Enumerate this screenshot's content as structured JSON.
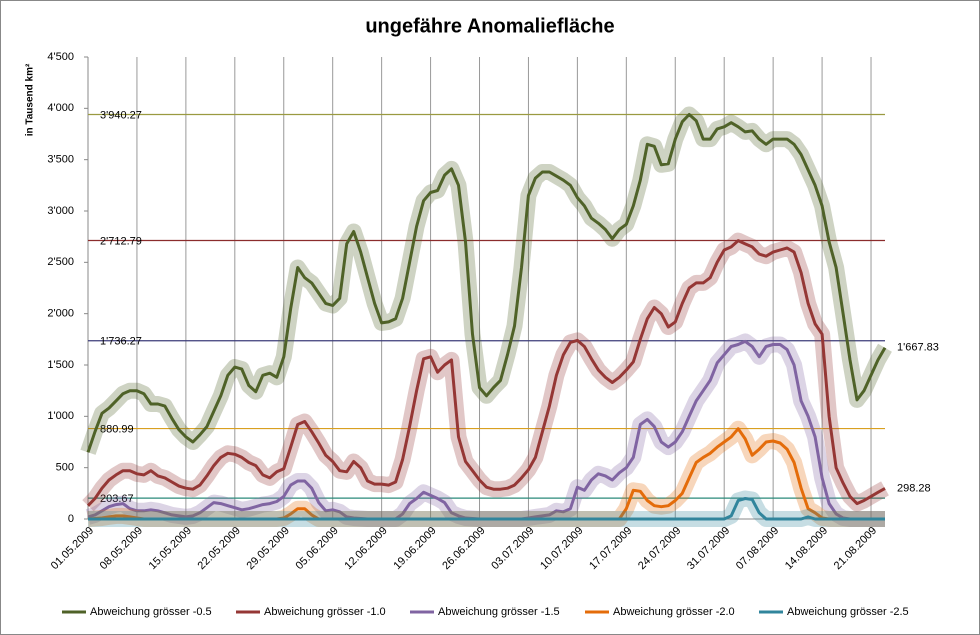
{
  "chart_data": {
    "type": "line",
    "title": "ungefähre Anomaliefläche",
    "y_label": "in Tausend  km²",
    "categories": [
      "01.05.2009",
      null,
      null,
      null,
      null,
      null,
      null,
      "08.05.2009",
      null,
      null,
      null,
      null,
      null,
      null,
      "15.05.2009",
      null,
      null,
      null,
      null,
      null,
      null,
      "22.05.2009",
      null,
      null,
      null,
      null,
      null,
      null,
      "29.05.2009",
      null,
      null,
      null,
      null,
      null,
      null,
      "05.06.2009",
      null,
      null,
      null,
      null,
      null,
      null,
      "12.06.2009",
      null,
      null,
      null,
      null,
      null,
      null,
      "19.06.2009",
      null,
      null,
      null,
      null,
      null,
      null,
      "26.06.2009",
      null,
      null,
      null,
      null,
      null,
      null,
      "03.07.2009",
      null,
      null,
      null,
      null,
      null,
      null,
      "10.07.2009",
      null,
      null,
      null,
      null,
      null,
      null,
      "17.07.2009",
      null,
      null,
      null,
      null,
      null,
      null,
      "24.07.2009",
      null,
      null,
      null,
      null,
      null,
      null,
      "31.07.2009",
      null,
      null,
      null,
      null,
      null,
      null,
      "07.08.2009",
      null,
      null,
      null,
      null,
      null,
      null,
      "14.08.2009",
      null,
      null,
      null,
      null,
      null,
      null,
      "21.08.2009",
      null,
      null
    ],
    "ylim": [
      0,
      4500
    ],
    "yticks": [
      0,
      500,
      {
        "value": 1000,
        "label": "1'000"
      },
      {
        "value": 1500,
        "label": "1'500"
      },
      {
        "value": 2000,
        "label": "2'000"
      },
      {
        "value": 2500,
        "label": "2'500"
      },
      {
        "value": 3000,
        "label": "3'000"
      },
      {
        "value": 3500,
        "label": "3'500"
      },
      {
        "value": 4000,
        "label": "4'000"
      },
      {
        "value": 4500,
        "label": "4'500"
      }
    ],
    "reference_lines": [
      {
        "value": 3940.27,
        "label": "3'940.27",
        "color": "#9a9a40"
      },
      {
        "value": 2712.79,
        "label": "2'712.79",
        "color": "#8b2c2c"
      },
      {
        "value": 1736.27,
        "label": "1'736.27",
        "color": "#3d3d7a"
      },
      {
        "value": 880.99,
        "label": "880.99",
        "color": "#d9a020"
      },
      {
        "value": 203.67,
        "label": "203.67",
        "color": "#2a8a7a"
      }
    ],
    "series": [
      {
        "name": "Abweichung grösser -0.5",
        "color": "#4f6228",
        "end_label": "1'667.83",
        "values": [
          650,
          850,
          1030,
          1080,
          1150,
          1220,
          1250,
          1250,
          1220,
          1120,
          1120,
          1100,
          980,
          870,
          800,
          750,
          820,
          900,
          1050,
          1200,
          1400,
          1480,
          1460,
          1300,
          1240,
          1400,
          1420,
          1380,
          1580,
          2050,
          2450,
          2350,
          2300,
          2200,
          2100,
          2080,
          2150,
          2680,
          2800,
          2600,
          2350,
          2100,
          1910,
          1920,
          1950,
          2150,
          2500,
          2850,
          3100,
          3180,
          3200,
          3350,
          3410,
          3250,
          2700,
          1800,
          1280,
          1200,
          1280,
          1350,
          1600,
          1880,
          2450,
          3150,
          3320,
          3380,
          3380,
          3340,
          3300,
          3250,
          3130,
          3050,
          2930,
          2880,
          2820,
          2730,
          2820,
          2870,
          3050,
          3300,
          3650,
          3630,
          3450,
          3460,
          3700,
          3870,
          3940,
          3880,
          3700,
          3700,
          3800,
          3820,
          3860,
          3820,
          3770,
          3780,
          3700,
          3650,
          3700,
          3700,
          3700,
          3650,
          3550,
          3400,
          3250,
          3050,
          2700,
          2450,
          2000,
          1550,
          1160,
          1250,
          1400,
          1550,
          1667.83
        ]
      },
      {
        "name": "Abweichung grösser -1.0",
        "color": "#953735",
        "end_label": "298.28",
        "values": [
          130,
          200,
          300,
          380,
          430,
          470,
          470,
          440,
          430,
          470,
          420,
          400,
          360,
          320,
          300,
          290,
          330,
          420,
          520,
          600,
          640,
          630,
          600,
          550,
          520,
          430,
          400,
          460,
          490,
          700,
          920,
          950,
          850,
          740,
          620,
          560,
          470,
          460,
          560,
          500,
          370,
          340,
          340,
          330,
          360,
          580,
          900,
          1250,
          1560,
          1580,
          1430,
          1500,
          1550,
          800,
          560,
          470,
          380,
          310,
          290,
          290,
          300,
          330,
          400,
          480,
          600,
          850,
          1100,
          1400,
          1600,
          1720,
          1740,
          1680,
          1560,
          1450,
          1380,
          1330,
          1380,
          1450,
          1530,
          1750,
          1950,
          2060,
          2000,
          1870,
          1920,
          2100,
          2250,
          2300,
          2300,
          2350,
          2500,
          2620,
          2650,
          2712,
          2680,
          2650,
          2580,
          2560,
          2600,
          2620,
          2640,
          2600,
          2400,
          2100,
          1900,
          1800,
          1000,
          500,
          350,
          220,
          150,
          180,
          220,
          260,
          298.28
        ]
      },
      {
        "name": "Abweichung grösser -1.5",
        "color": "#8064a2",
        "values": [
          20,
          40,
          80,
          120,
          140,
          150,
          100,
          80,
          80,
          90,
          80,
          60,
          40,
          30,
          20,
          30,
          60,
          110,
          160,
          150,
          130,
          110,
          90,
          100,
          120,
          140,
          150,
          170,
          220,
          330,
          370,
          370,
          300,
          160,
          80,
          90,
          70,
          20,
          10,
          5,
          0,
          0,
          0,
          0,
          0,
          50,
          150,
          200,
          260,
          230,
          200,
          160,
          60,
          30,
          10,
          5,
          0,
          0,
          0,
          0,
          0,
          0,
          0,
          10,
          20,
          30,
          40,
          80,
          70,
          100,
          310,
          280,
          380,
          440,
          420,
          380,
          450,
          500,
          600,
          920,
          970,
          900,
          750,
          700,
          750,
          850,
          1000,
          1150,
          1250,
          1350,
          1520,
          1600,
          1680,
          1700,
          1730,
          1680,
          1580,
          1680,
          1700,
          1700,
          1650,
          1500,
          1150,
          1000,
          800,
          400,
          150,
          50,
          10,
          0,
          0,
          0,
          0,
          0,
          0
        ]
      },
      {
        "name": "Abweichung grösser -2.0",
        "color": "#e46c0a",
        "values": [
          0,
          5,
          10,
          20,
          30,
          30,
          20,
          10,
          0,
          0,
          0,
          0,
          0,
          0,
          0,
          0,
          0,
          0,
          0,
          0,
          0,
          0,
          0,
          0,
          0,
          0,
          0,
          0,
          10,
          50,
          100,
          100,
          40,
          0,
          0,
          0,
          0,
          0,
          0,
          0,
          0,
          0,
          0,
          0,
          0,
          0,
          0,
          0,
          0,
          0,
          0,
          0,
          0,
          0,
          0,
          0,
          0,
          0,
          0,
          0,
          0,
          0,
          0,
          0,
          0,
          0,
          0,
          0,
          0,
          0,
          0,
          0,
          0,
          0,
          0,
          0,
          0,
          100,
          280,
          270,
          180,
          130,
          120,
          130,
          180,
          250,
          400,
          550,
          600,
          640,
          700,
          750,
          800,
          880,
          780,
          620,
          680,
          750,
          760,
          740,
          680,
          550,
          300,
          100,
          60,
          10,
          0,
          0,
          0,
          0,
          0,
          0,
          0,
          0,
          0
        ]
      },
      {
        "name": "Abweichung grösser -2.5",
        "color": "#31859c",
        "values": [
          0,
          0,
          0,
          0,
          0,
          0,
          0,
          0,
          0,
          0,
          0,
          0,
          0,
          0,
          0,
          0,
          0,
          0,
          0,
          0,
          0,
          0,
          0,
          0,
          0,
          0,
          0,
          0,
          0,
          0,
          0,
          0,
          0,
          0,
          0,
          0,
          0,
          0,
          0,
          0,
          0,
          0,
          0,
          0,
          0,
          0,
          0,
          0,
          0,
          0,
          0,
          0,
          0,
          0,
          0,
          0,
          0,
          0,
          0,
          0,
          0,
          0,
          0,
          0,
          0,
          0,
          0,
          0,
          0,
          0,
          0,
          0,
          0,
          0,
          0,
          0,
          0,
          0,
          0,
          0,
          0,
          0,
          0,
          0,
          0,
          0,
          0,
          0,
          0,
          0,
          0,
          0,
          30,
          180,
          200,
          190,
          60,
          0,
          0,
          0,
          0,
          0,
          0,
          20,
          0,
          0,
          0,
          0,
          0,
          0,
          0,
          0,
          0,
          0,
          0
        ]
      }
    ]
  }
}
